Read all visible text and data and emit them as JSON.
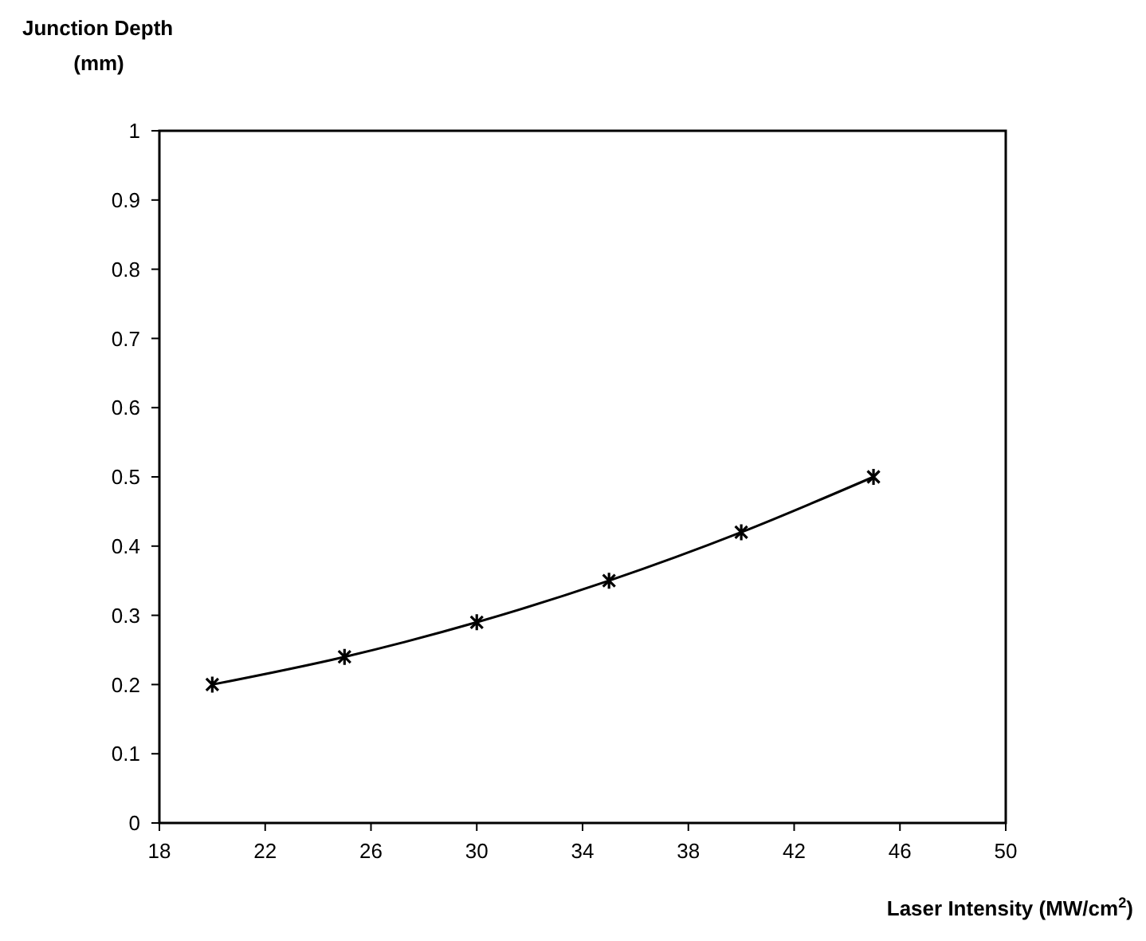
{
  "chart_data": {
    "type": "line",
    "xlabel": "Laser Intensity (MW/cm$^{2}$)",
    "ylabel": "Junction Depth\n(mm)",
    "x": [
      20,
      25,
      30,
      35,
      40,
      45
    ],
    "series": [
      {
        "color": "#000000",
        "values": [
          0.2,
          0.24,
          0.29,
          0.35,
          0.42,
          0.5
        ]
      }
    ],
    "xlim": [
      18,
      50
    ],
    "xticks": [
      18,
      22,
      26,
      30,
      34,
      38,
      42,
      46,
      50
    ],
    "ylim": [
      0,
      1
    ],
    "yticks": [
      0,
      0.1,
      0.2,
      0.3,
      0.4,
      0.5,
      0.6,
      0.7,
      0.8,
      0.9,
      1
    ],
    "grid": false,
    "marker": "cross",
    "line_style": "solid"
  }
}
